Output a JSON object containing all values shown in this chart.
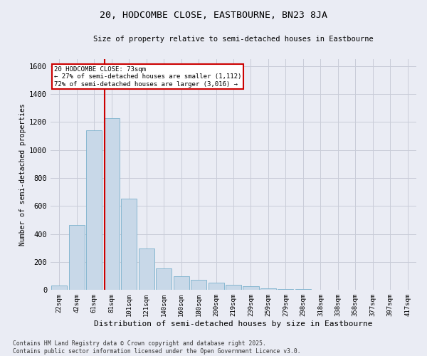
{
  "title": "20, HODCOMBE CLOSE, EASTBOURNE, BN23 8JA",
  "subtitle": "Size of property relative to semi-detached houses in Eastbourne",
  "xlabel": "Distribution of semi-detached houses by size in Eastbourne",
  "ylabel": "Number of semi-detached properties",
  "categories": [
    "22sqm",
    "42sqm",
    "61sqm",
    "81sqm",
    "101sqm",
    "121sqm",
    "140sqm",
    "160sqm",
    "180sqm",
    "200sqm",
    "219sqm",
    "239sqm",
    "259sqm",
    "279sqm",
    "298sqm",
    "318sqm",
    "338sqm",
    "358sqm",
    "377sqm",
    "397sqm",
    "417sqm"
  ],
  "values": [
    30,
    465,
    1140,
    1230,
    655,
    295,
    155,
    100,
    75,
    55,
    38,
    25,
    10,
    5,
    5,
    2,
    1,
    1,
    0,
    0,
    0
  ],
  "bar_color": "#c8d8e8",
  "bar_edge_color": "#7ab0cc",
  "grid_color": "#c8ccd8",
  "background_color": "#eaecf4",
  "property_label": "20 HODCOMBE CLOSE: 73sqm",
  "smaller_pct": "27% of semi-detached houses are smaller (1,112)",
  "larger_pct": "72% of semi-detached houses are larger (3,016)",
  "annotation_box_color": "#ffffff",
  "annotation_box_edge": "#cc0000",
  "footer1": "Contains HM Land Registry data © Crown copyright and database right 2025.",
  "footer2": "Contains public sector information licensed under the Open Government Licence v3.0.",
  "ylim": [
    0,
    1650
  ],
  "yticks": [
    0,
    200,
    400,
    600,
    800,
    1000,
    1200,
    1400,
    1600
  ]
}
